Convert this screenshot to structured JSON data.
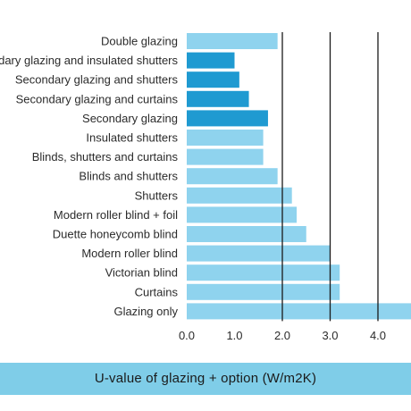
{
  "chart_data": {
    "type": "bar",
    "orientation": "horizontal",
    "categories": [
      "Double glazing",
      "Secondary glazing and insulated shutters",
      "Secondary glazing and shutters",
      "Secondary glazing and curtains",
      "Secondary glazing",
      "Insulated shutters",
      "Blinds, shutters and curtains",
      "Blinds and shutters",
      "Shutters",
      "Modern roller blind + foil",
      "Duette honeycomb blind",
      "Modern roller blind",
      "Victorian blind",
      "Curtains",
      "Glazing only"
    ],
    "values": [
      1.9,
      1.0,
      1.1,
      1.3,
      1.7,
      1.6,
      1.6,
      1.9,
      2.2,
      2.3,
      2.5,
      3.0,
      3.2,
      3.2,
      4.8
    ],
    "highlight": [
      false,
      true,
      true,
      true,
      true,
      false,
      false,
      false,
      false,
      false,
      false,
      false,
      false,
      false,
      false
    ],
    "xticks": [
      "0.0",
      "1.0",
      "2.0",
      "3.0",
      "4.0"
    ],
    "xlim": [
      0,
      4.8
    ],
    "xlabel": "U-value of glazing + option (W/m2K)",
    "gridlines": [
      2,
      3,
      4
    ],
    "colors": {
      "bar": "#8fd3ee",
      "highlight": "#1f9ad1",
      "grid": "#1a1a1a",
      "axis_band": "#7fcde8"
    }
  }
}
